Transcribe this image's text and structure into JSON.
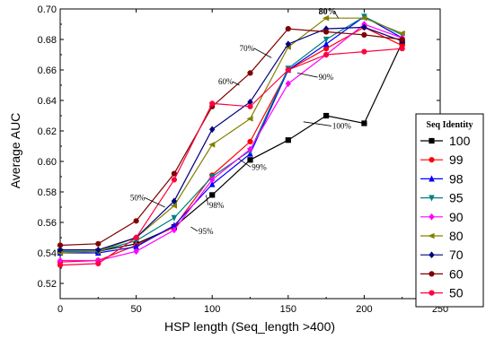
{
  "chart_data": {
    "type": "line",
    "title": "",
    "xlabel": "HSP length (Seq_length >400)",
    "ylabel": "Average AUC",
    "xlim": [
      0,
      250
    ],
    "ylim": [
      0.51,
      0.7
    ],
    "xticks": [
      0,
      50,
      100,
      150,
      200,
      250
    ],
    "yticks": [
      0.52,
      0.54,
      0.56,
      0.58,
      0.6,
      0.62,
      0.64,
      0.66,
      0.68,
      0.7
    ],
    "x": [
      0,
      25,
      50,
      75,
      100,
      125,
      150,
      175,
      200,
      225
    ],
    "legend": {
      "title": "Seq Identity",
      "position": "right"
    },
    "series": [
      {
        "name": "100",
        "color": "#000000",
        "marker": "square",
        "values": [
          0.541,
          0.541,
          0.546,
          0.557,
          0.578,
          0.601,
          0.614,
          0.63,
          0.625,
          0.678
        ]
      },
      {
        "name": "99",
        "color": "#ff0000",
        "marker": "circle",
        "values": [
          0.534,
          0.535,
          0.545,
          0.557,
          0.591,
          0.613,
          0.66,
          0.674,
          0.688,
          0.676
        ]
      },
      {
        "name": "98",
        "color": "#0000ff",
        "marker": "triangle-up",
        "values": [
          0.54,
          0.54,
          0.544,
          0.558,
          0.585,
          0.605,
          0.66,
          0.677,
          0.695,
          0.681
        ]
      },
      {
        "name": "95",
        "color": "#008080",
        "marker": "triangle-down",
        "values": [
          0.541,
          0.541,
          0.548,
          0.563,
          0.59,
          0.607,
          0.661,
          0.68,
          0.695,
          0.683
        ]
      },
      {
        "name": "90",
        "color": "#ff00ff",
        "marker": "diamond",
        "values": [
          0.535,
          0.535,
          0.541,
          0.555,
          0.588,
          0.608,
          0.651,
          0.67,
          0.69,
          0.681
        ]
      },
      {
        "name": "80",
        "color": "#808000",
        "marker": "triangle-left",
        "values": [
          0.54,
          0.541,
          0.55,
          0.571,
          0.611,
          0.628,
          0.675,
          0.694,
          0.694,
          0.684
        ]
      },
      {
        "name": "70",
        "color": "#000080",
        "marker": "diamond",
        "values": [
          0.542,
          0.542,
          0.55,
          0.574,
          0.621,
          0.639,
          0.677,
          0.687,
          0.688,
          0.679
        ]
      },
      {
        "name": "60",
        "color": "#800000",
        "marker": "circle",
        "values": [
          0.545,
          0.546,
          0.561,
          0.592,
          0.636,
          0.658,
          0.687,
          0.685,
          0.683,
          0.68
        ]
      },
      {
        "name": "50",
        "color": "#ff0040",
        "marker": "circle",
        "values": [
          0.532,
          0.533,
          0.55,
          0.588,
          0.638,
          0.636,
          0.66,
          0.67,
          0.672,
          0.674
        ]
      }
    ],
    "annotations": [
      {
        "text": "80%",
        "bold": true,
        "x": 170,
        "y": 0.6965,
        "target_x": 183,
        "target_y": 0.694
      },
      {
        "text": "70%",
        "x": 118,
        "y": 0.6725,
        "target_x": 139,
        "target_y": 0.668
      },
      {
        "text": "60%",
        "x": 104,
        "y": 0.6505,
        "target_x": 118,
        "target_y": 0.65
      },
      {
        "text": "90%",
        "x": 170,
        "y": 0.6535,
        "target_x": 156,
        "target_y": 0.658
      },
      {
        "text": "100%",
        "x": 179,
        "y": 0.6215,
        "target_x": 160,
        "target_y": 0.626
      },
      {
        "text": "99%",
        "x": 126,
        "y": 0.5945,
        "target_x": 117,
        "target_y": 0.602
      },
      {
        "text": "98%",
        "x": 98,
        "y": 0.5695,
        "target_x": 96,
        "target_y": 0.578
      },
      {
        "text": "50%",
        "x": 46,
        "y": 0.5745,
        "target_x": 69,
        "target_y": 0.57
      },
      {
        "text": "95%",
        "x": 91,
        "y": 0.5525,
        "target_x": 86,
        "target_y": 0.557
      }
    ]
  }
}
